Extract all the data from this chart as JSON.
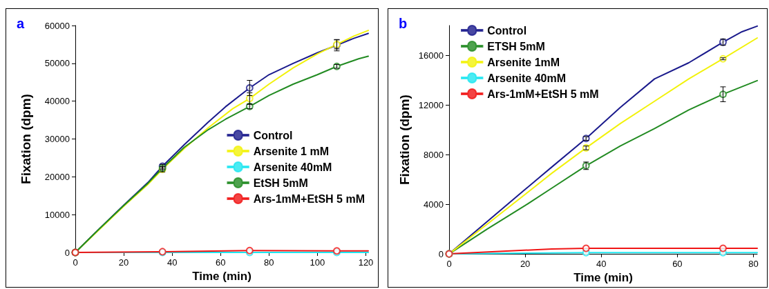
{
  "chart_data": [
    {
      "type": "line",
      "title": "a",
      "xlabel": "Time (min)",
      "ylabel": "Fixation (dpm)",
      "xlim": [
        0,
        121
      ],
      "xticks": [
        0,
        20,
        40,
        60,
        80,
        100,
        120
      ],
      "ylim": [
        0,
        60000
      ],
      "yticks": [
        0,
        10000,
        20000,
        30000,
        40000,
        50000,
        60000
      ],
      "grid": false,
      "legend": "right",
      "marker": "circle",
      "line_style": "solid",
      "series": [
        {
          "name": "Control",
          "type": "scatter",
          "color": "#1a1a8c",
          "x": [
            0,
            36,
            72,
            108
          ],
          "values": [
            0,
            22800,
            43500,
            54800
          ],
          "errors": [
            null,
            500,
            2000,
            1500
          ]
        },
        {
          "name": "Arsenite 1 mM",
          "type": "scatter",
          "color": "#f2f20a",
          "x": [
            0,
            36,
            72,
            108
          ],
          "values": [
            0,
            22000,
            40700,
            55000
          ],
          "errors": [
            null,
            700,
            1500,
            1200
          ]
        },
        {
          "name": "Arsenite 40mM",
          "type": "scatter",
          "color": "#1ee6f0",
          "x": [
            0,
            36,
            72,
            108
          ],
          "values": [
            0,
            0,
            0,
            0
          ]
        },
        {
          "name": "EtSH 5mM",
          "type": "scatter",
          "color": "#228b22",
          "x": [
            0,
            36,
            72,
            108
          ],
          "values": [
            0,
            22300,
            38600,
            49200
          ],
          "errors": [
            null,
            400,
            600,
            500
          ]
        },
        {
          "name": "Ars-1mM+EtSH 5 mM",
          "type": "scatter",
          "color": "#f01414",
          "x": [
            0,
            36,
            72,
            108
          ],
          "values": [
            0,
            200,
            500,
            400
          ]
        },
        {
          "type": "line",
          "marker": "none",
          "color": "#1a1a8c",
          "x": [
            0,
            10,
            20,
            30,
            36,
            45,
            55,
            62,
            72,
            80,
            90,
            100,
            108,
            115,
            121
          ],
          "values": [
            0,
            6300,
            12500,
            18500,
            22800,
            28500,
            34500,
            38500,
            43500,
            47000,
            50000,
            52800,
            54800,
            56600,
            57900
          ]
        },
        {
          "type": "line",
          "marker": "none",
          "color": "#f2f20a",
          "x": [
            0,
            10,
            20,
            30,
            36,
            45,
            55,
            65,
            72,
            80,
            90,
            100,
            108,
            115,
            121
          ],
          "values": [
            0,
            6100,
            12200,
            18000,
            22000,
            27500,
            33000,
            38000,
            40700,
            44500,
            48800,
            52500,
            55000,
            57200,
            58700
          ]
        },
        {
          "type": "line",
          "marker": "none",
          "color": "#1ee6f0",
          "x": [
            0,
            36,
            72,
            108,
            121
          ],
          "values": [
            0,
            0,
            0,
            0,
            0
          ]
        },
        {
          "type": "line",
          "marker": "none",
          "color": "#228b22",
          "x": [
            0,
            10,
            20,
            30,
            36,
            45,
            55,
            62,
            72,
            80,
            90,
            100,
            108,
            117,
            121
          ],
          "values": [
            0,
            6300,
            12400,
            18300,
            22300,
            27800,
            32500,
            35200,
            38600,
            41500,
            44500,
            47000,
            49200,
            51200,
            51900
          ]
        },
        {
          "type": "line",
          "marker": "none",
          "color": "#f01414",
          "x": [
            0,
            36,
            72,
            108,
            121
          ],
          "values": [
            0,
            200,
            500,
            400,
            400
          ]
        }
      ]
    },
    {
      "type": "line",
      "title": "b",
      "xlabel": "Time (min)",
      "ylabel": "Fixation (dpm)",
      "xlim": [
        0,
        81
      ],
      "xticks": [
        0,
        20,
        40,
        60,
        80
      ],
      "ylim": [
        0,
        18400
      ],
      "yticks": [
        0,
        4000,
        8000,
        12000,
        16000
      ],
      "grid": false,
      "legend": "top left",
      "marker": "circle",
      "line_style": "solid",
      "series": [
        {
          "name": "Control",
          "type": "scatter",
          "color": "#1a1a8c",
          "x": [
            0,
            36,
            72
          ],
          "values": [
            0,
            9300,
            17060
          ],
          "errors": [
            null,
            150,
            250
          ]
        },
        {
          "name": "ETSH 5mM",
          "type": "scatter",
          "color": "#228b22",
          "x": [
            0,
            36,
            72
          ],
          "values": [
            0,
            7100,
            12860
          ],
          "errors": [
            null,
            300,
            600
          ]
        },
        {
          "name": "Arsenite 1mM",
          "type": "scatter",
          "color": "#f2f20a",
          "x": [
            0,
            36,
            72
          ],
          "values": [
            0,
            8540,
            15720
          ],
          "errors": [
            null,
            150,
            80
          ]
        },
        {
          "name": "Arsenite 40mM",
          "type": "scatter",
          "color": "#1ee6f0",
          "x": [
            0,
            36,
            72
          ],
          "values": [
            0,
            100,
            100
          ]
        },
        {
          "name": "Ars-1mM+EtSH 5 mM",
          "type": "scatter",
          "color": "#f01414",
          "x": [
            0,
            36,
            72
          ],
          "values": [
            0,
            450,
            450
          ]
        },
        {
          "type": "line",
          "marker": "none",
          "color": "#1a1a8c",
          "x": [
            0,
            10,
            20,
            27,
            36,
            45,
            54,
            63,
            72,
            77,
            81
          ],
          "values": [
            0,
            2600,
            5200,
            7000,
            9300,
            11800,
            14100,
            15400,
            17060,
            17900,
            18350
          ]
        },
        {
          "type": "line",
          "marker": "none",
          "color": "#228b22",
          "x": [
            0,
            10,
            20,
            27,
            36,
            45,
            54,
            63,
            72,
            81
          ],
          "values": [
            0,
            2000,
            3900,
            5300,
            7100,
            8700,
            10100,
            11600,
            12860,
            13960
          ]
        },
        {
          "type": "line",
          "marker": "none",
          "color": "#f2f20a",
          "x": [
            0,
            10,
            20,
            27,
            36,
            45,
            54,
            63,
            72,
            81
          ],
          "values": [
            0,
            2400,
            4800,
            6500,
            8540,
            10500,
            12300,
            14100,
            15720,
            17400
          ]
        },
        {
          "type": "line",
          "marker": "none",
          "color": "#1ee6f0",
          "x": [
            0,
            36,
            72,
            81
          ],
          "values": [
            0,
            100,
            100,
            100
          ]
        },
        {
          "type": "line",
          "marker": "none",
          "color": "#f01414",
          "x": [
            0,
            27,
            36,
            72,
            81
          ],
          "values": [
            0,
            400,
            450,
            450,
            450
          ]
        }
      ]
    }
  ]
}
